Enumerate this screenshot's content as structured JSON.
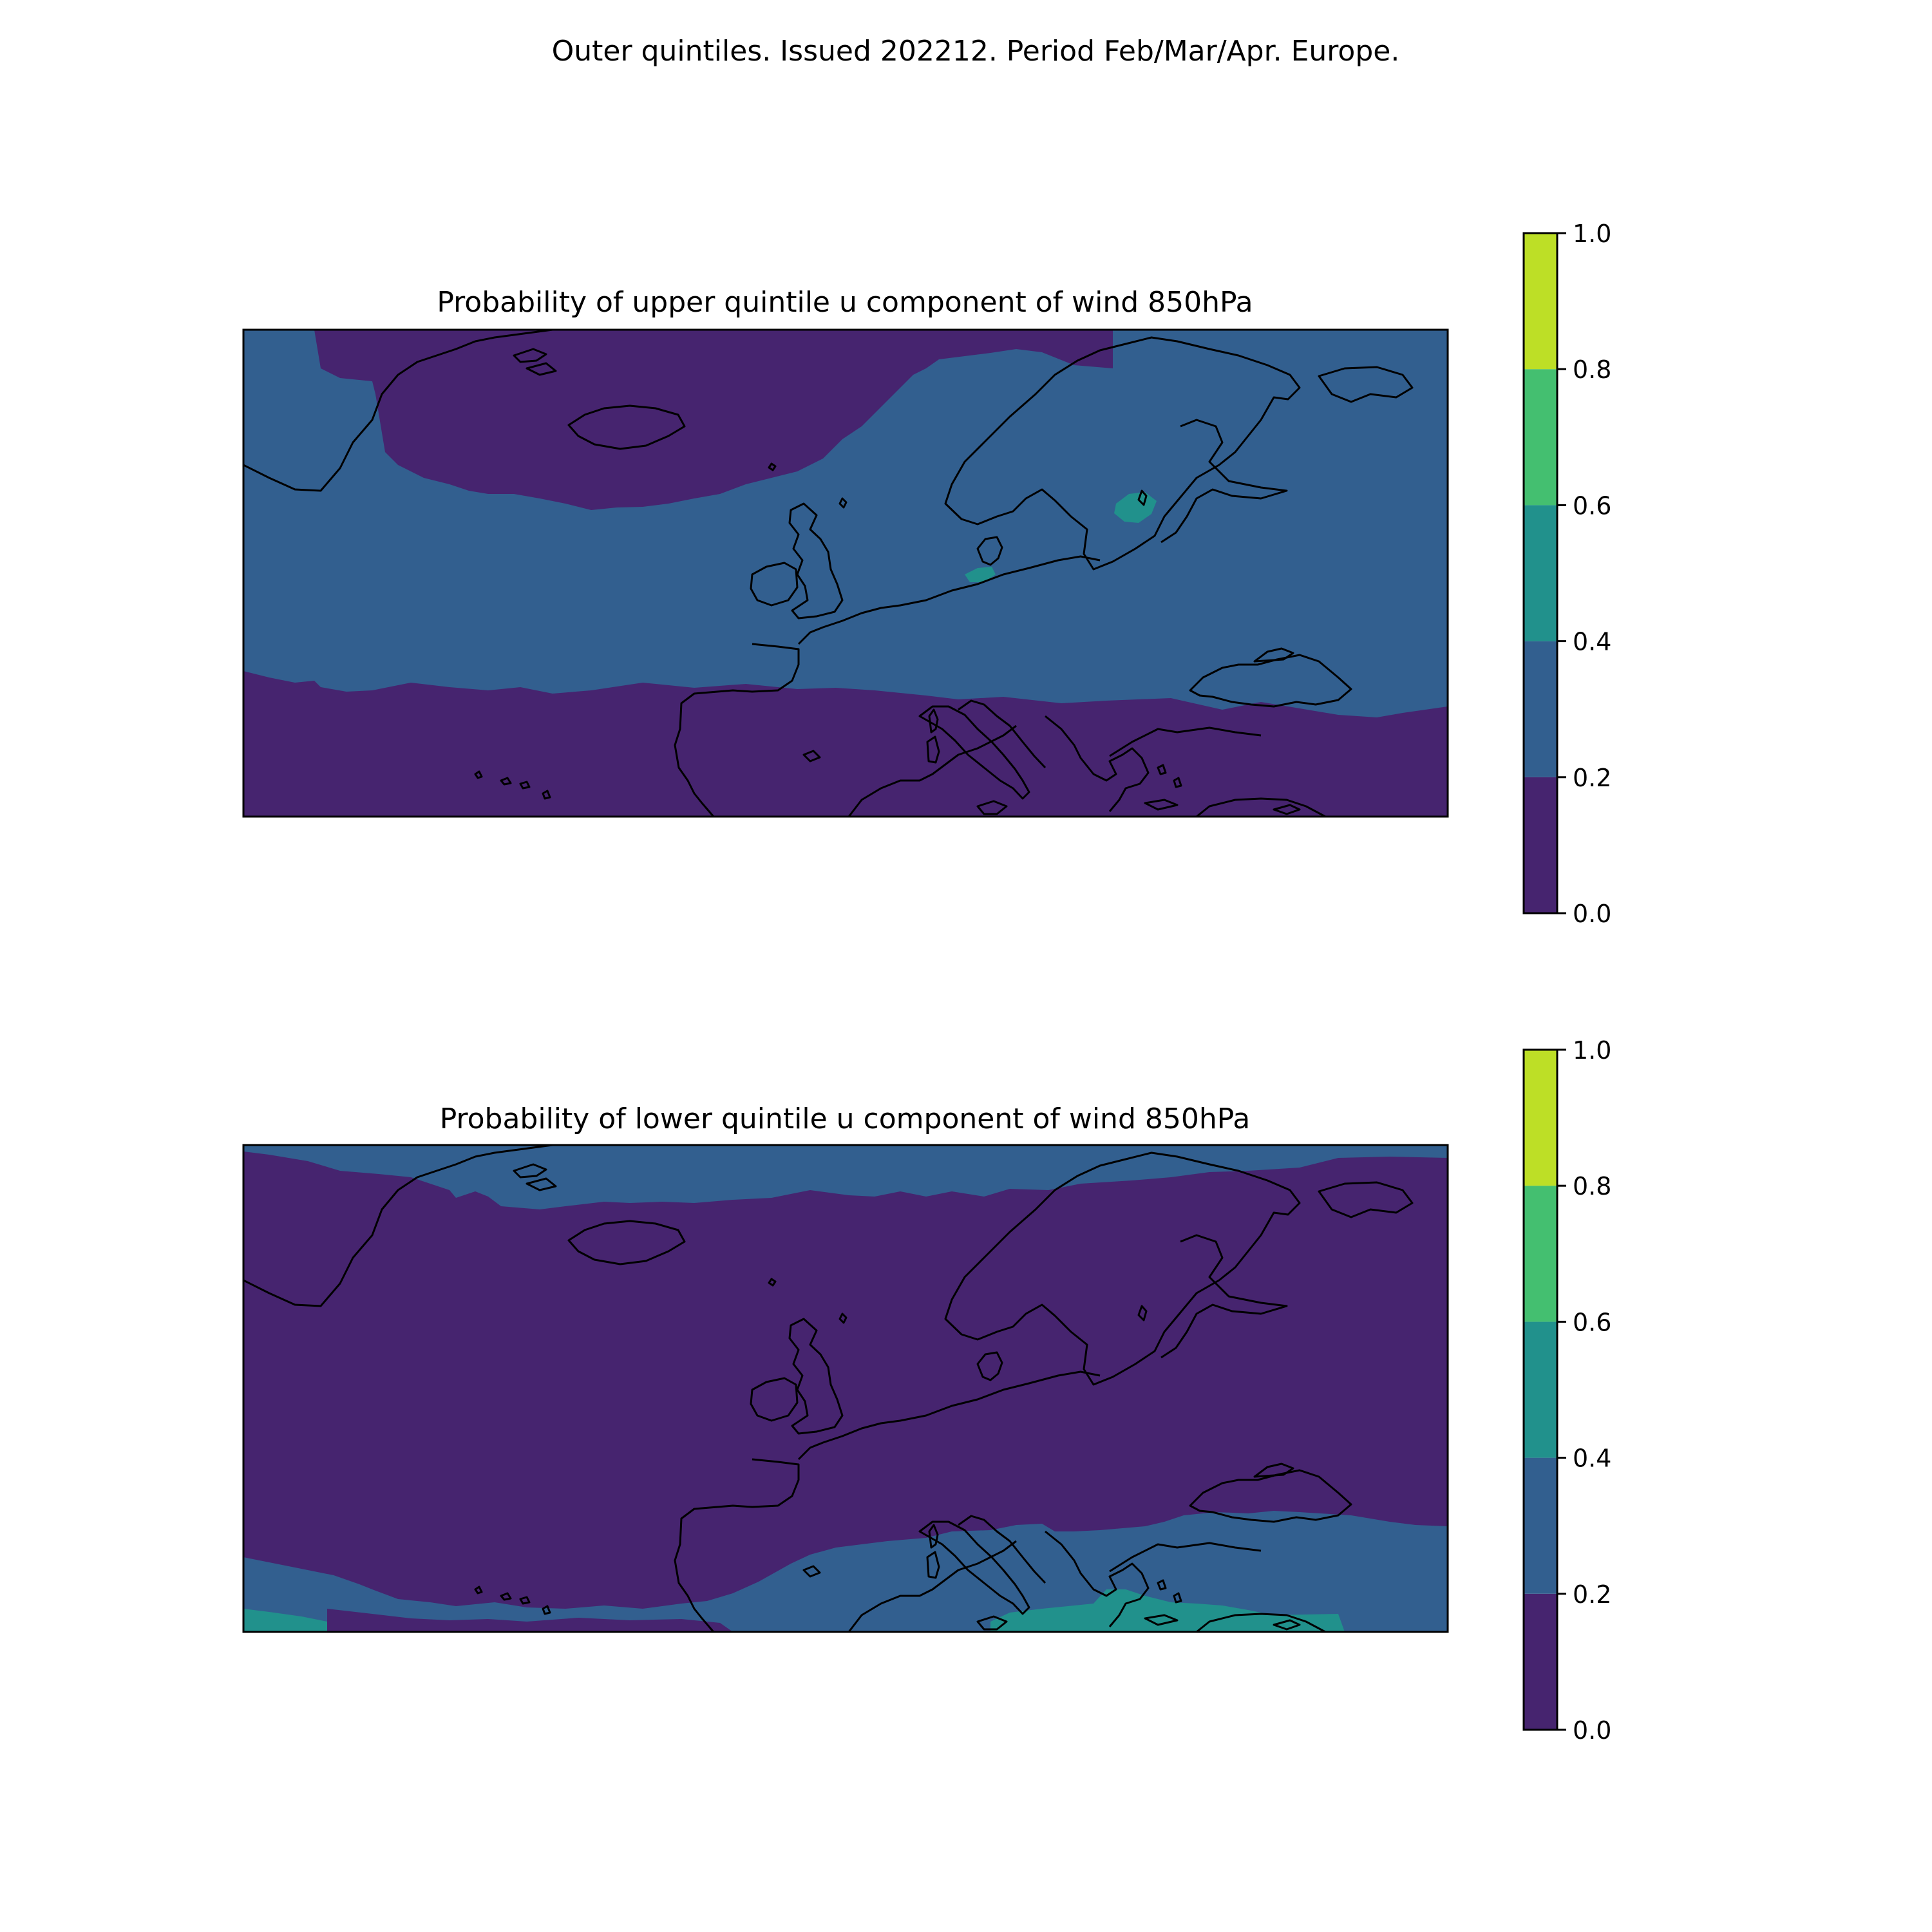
{
  "figure": {
    "suptitle": "Outer quintiles. Issued 202212. Period Feb/Mar/Apr. Europe."
  },
  "colorbar": {
    "levels": [
      0.0,
      0.2,
      0.4,
      0.6,
      0.8,
      1.0
    ],
    "tick_labels": [
      "0.0",
      "0.2",
      "0.4",
      "0.6",
      "0.8",
      "1.0"
    ],
    "colors": [
      "#46246f",
      "#325f8f",
      "#21918c",
      "#44bf70",
      "#bddf26"
    ]
  },
  "colors": {
    "coastline": "#000000",
    "frame": "#000000"
  },
  "panels": [
    {
      "id": "upper",
      "title": "Probability of upper quintile u component of wind 850hPa",
      "dominant_band": "0.2-0.4",
      "other_bands": [
        "0.0-0.2",
        "0.4-0.6"
      ]
    },
    {
      "id": "lower",
      "title": "Probability of lower quintile u component of wind 850hPa",
      "dominant_band": "0.0-0.2",
      "other_bands": [
        "0.2-0.4",
        "0.4-0.6"
      ]
    }
  ]
}
